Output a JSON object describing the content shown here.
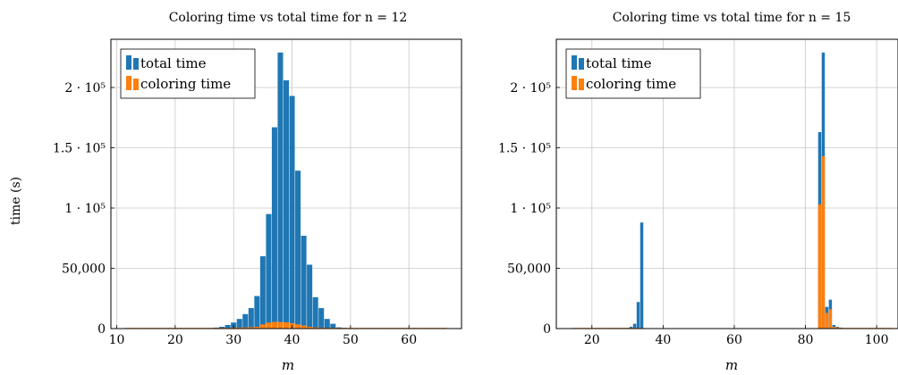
{
  "chart_data": [
    {
      "type": "bar",
      "title": "Coloring time vs total time for n = 12",
      "xlabel": "m",
      "ylabel": "time (s)",
      "xlim": [
        9,
        69
      ],
      "ylim": [
        0,
        240000
      ],
      "xticks": [
        10,
        20,
        30,
        40,
        50,
        60
      ],
      "xtick_labels": [
        "10",
        "20",
        "30",
        "40",
        "50",
        "60"
      ],
      "yticks": [
        0,
        50000,
        100000,
        150000,
        200000
      ],
      "ytick_labels": [
        "0",
        "50,000",
        "1 · 10⁵",
        "1.5 · 10⁵",
        "2 · 10⁵"
      ],
      "grid": true,
      "legend": "top-left",
      "x": [
        12,
        13,
        14,
        15,
        16,
        17,
        18,
        19,
        20,
        21,
        22,
        23,
        24,
        25,
        26,
        27,
        28,
        29,
        30,
        31,
        32,
        33,
        34,
        35,
        36,
        37,
        38,
        39,
        40,
        41,
        42,
        43,
        44,
        45,
        46,
        47,
        48,
        49,
        50,
        51,
        52,
        53,
        54,
        55,
        56,
        57,
        58,
        59,
        60,
        61,
        62,
        63,
        64,
        65,
        66
      ],
      "series": [
        {
          "name": "total time",
          "color": "#1f77b4",
          "values": [
            0,
            0,
            0,
            0,
            0,
            0,
            0,
            0,
            0,
            0,
            0,
            0,
            0,
            200,
            400,
            800,
            1500,
            3000,
            5000,
            8000,
            12000,
            17000,
            27000,
            60000,
            95000,
            167000,
            229000,
            206000,
            193000,
            131000,
            77000,
            53000,
            26000,
            17000,
            8000,
            4000,
            1000,
            500,
            0,
            0,
            0,
            0,
            0,
            0,
            0,
            0,
            0,
            0,
            0,
            0,
            0,
            0,
            0,
            0,
            0
          ]
        },
        {
          "name": "coloring time",
          "color": "#ff7f0e",
          "values": [
            600,
            600,
            600,
            600,
            600,
            600,
            600,
            600,
            600,
            600,
            600,
            600,
            600,
            600,
            600,
            600,
            600,
            600,
            800,
            900,
            1000,
            1200,
            1500,
            3500,
            5000,
            5500,
            5500,
            5200,
            4500,
            3500,
            2500,
            1500,
            1000,
            800,
            600,
            600,
            600,
            600,
            600,
            600,
            600,
            600,
            600,
            600,
            600,
            600,
            600,
            600,
            600,
            600,
            600,
            600,
            600,
            600,
            600
          ]
        }
      ]
    },
    {
      "type": "bar",
      "title": "Coloring time vs total time for n = 15",
      "xlabel": "m",
      "ylabel": "",
      "xlim": [
        10,
        106
      ],
      "ylim": [
        0,
        240000
      ],
      "xticks": [
        20,
        40,
        60,
        80,
        100
      ],
      "xtick_labels": [
        "20",
        "40",
        "60",
        "80",
        "100"
      ],
      "yticks": [
        0,
        50000,
        100000,
        150000,
        200000
      ],
      "ytick_labels": [
        "0",
        "50,000",
        "1 · 10⁵",
        "1.5 · 10⁵",
        "2 · 10⁵"
      ],
      "grid": true,
      "legend": "top-left",
      "x": [
        15,
        16,
        17,
        18,
        19,
        20,
        21,
        22,
        23,
        24,
        25,
        26,
        27,
        28,
        29,
        30,
        31,
        32,
        33,
        34,
        35,
        36,
        37,
        38,
        39,
        40,
        41,
        42,
        43,
        44,
        45,
        46,
        47,
        48,
        49,
        50,
        51,
        52,
        53,
        54,
        55,
        56,
        57,
        58,
        59,
        60,
        61,
        62,
        63,
        64,
        65,
        66,
        67,
        68,
        69,
        70,
        71,
        72,
        73,
        74,
        75,
        76,
        77,
        78,
        79,
        80,
        81,
        82,
        83,
        84,
        85,
        86,
        87,
        88,
        89,
        90,
        91,
        92,
        93,
        94,
        95,
        96,
        97,
        98,
        99,
        100,
        101,
        102,
        103,
        104
      ],
      "series": [
        {
          "name": "total time",
          "color": "#1f77b4",
          "values": [
            0,
            0,
            0,
            0,
            0,
            0,
            0,
            0,
            0,
            0,
            0,
            0,
            0,
            0,
            0,
            500,
            1500,
            4000,
            22000,
            88000,
            0,
            0,
            0,
            0,
            0,
            0,
            0,
            0,
            0,
            0,
            0,
            0,
            0,
            0,
            0,
            0,
            0,
            0,
            0,
            0,
            0,
            0,
            0,
            0,
            0,
            0,
            0,
            0,
            0,
            0,
            0,
            0,
            0,
            0,
            0,
            0,
            0,
            0,
            0,
            0,
            0,
            0,
            0,
            0,
            0,
            0,
            0,
            0,
            0,
            163000,
            229000,
            18000,
            24000,
            3000,
            1500,
            800,
            0,
            0,
            0,
            0,
            0,
            0,
            0,
            0,
            0,
            0,
            0,
            0,
            0,
            0
          ]
        },
        {
          "name": "coloring time",
          "color": "#ff7f0e",
          "values": [
            600,
            600,
            600,
            600,
            600,
            600,
            600,
            600,
            600,
            600,
            600,
            600,
            600,
            600,
            600,
            600,
            600,
            600,
            600,
            600,
            0,
            0,
            0,
            0,
            0,
            0,
            0,
            0,
            0,
            0,
            0,
            0,
            0,
            0,
            0,
            0,
            0,
            0,
            0,
            0,
            0,
            0,
            0,
            0,
            0,
            0,
            0,
            0,
            0,
            0,
            0,
            0,
            0,
            0,
            0,
            0,
            0,
            0,
            0,
            0,
            0,
            0,
            0,
            0,
            0,
            0,
            0,
            0,
            0,
            103000,
            143000,
            13000,
            16000,
            1500,
            1000,
            600,
            600,
            600,
            600,
            600,
            600,
            600,
            600,
            600,
            600,
            600,
            600,
            600,
            600,
            600
          ]
        }
      ]
    }
  ]
}
